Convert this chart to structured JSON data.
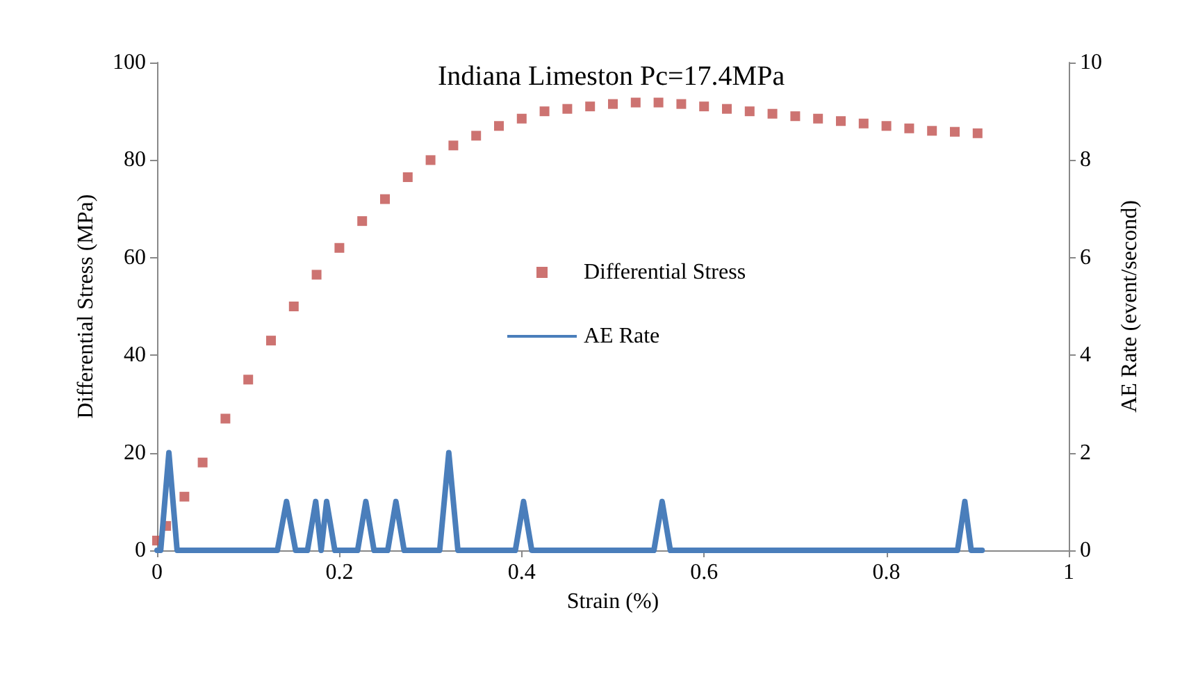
{
  "chart_data": {
    "type": "scatter",
    "title": "Indiana Limeston Pc=17.4MPa",
    "xlabel": "Strain (%)",
    "ylabel": "Differential Stress (MPa)",
    "y2label": "AE Rate (event/second)",
    "xlim": [
      0,
      1
    ],
    "xticks": [
      0,
      0.2,
      0.4,
      0.6,
      0.8,
      1
    ],
    "ylim": [
      0,
      100
    ],
    "yticks": [
      0,
      20,
      40,
      60,
      80,
      100
    ],
    "y2lim": [
      0,
      10
    ],
    "y2ticks": [
      0,
      2,
      4,
      6,
      8,
      10
    ],
    "grid": false,
    "legend": "center",
    "series": [
      {
        "name": "Differential Stress",
        "marker": "square",
        "color": "#c0504d",
        "x": [
          0,
          0.01,
          0.03,
          0.05,
          0.075,
          0.1,
          0.125,
          0.15,
          0.175,
          0.2,
          0.225,
          0.25,
          0.275,
          0.3,
          0.325,
          0.35,
          0.375,
          0.4,
          0.425,
          0.45,
          0.475,
          0.5,
          0.525,
          0.55,
          0.575,
          0.6,
          0.625,
          0.65,
          0.675,
          0.7,
          0.725,
          0.75,
          0.775,
          0.8,
          0.825,
          0.85,
          0.875,
          0.9
        ],
        "values": [
          2,
          5,
          11,
          18,
          27,
          35,
          43,
          50,
          56.5,
          62,
          67.5,
          72,
          76.5,
          80,
          83,
          85,
          87,
          88.5,
          90,
          90.5,
          91,
          91.5,
          91.8,
          91.8,
          91.5,
          91,
          90.5,
          90,
          89.5,
          89,
          88.5,
          88,
          87.5,
          87,
          86.5,
          86,
          85.8,
          85.5
        ]
      },
      {
        "name": "AE Rate",
        "type": "line",
        "axis": "y2",
        "marker": "none",
        "line_style": "solid",
        "color": "#4a7ebb",
        "x": [
          0,
          0.004,
          0.013,
          0.022,
          0.132,
          0.142,
          0.152,
          0.165,
          0.174,
          0.18,
          0.186,
          0.195,
          0.22,
          0.229,
          0.238,
          0.253,
          0.262,
          0.271,
          0.31,
          0.32,
          0.33,
          0.393,
          0.402,
          0.411,
          0.545,
          0.554,
          0.563,
          0.878,
          0.886,
          0.893,
          0.905
        ],
        "values": [
          0,
          0,
          2,
          0,
          0,
          1,
          0,
          0,
          1,
          0,
          1,
          0,
          0,
          1,
          0,
          0,
          1,
          0,
          0,
          2,
          0,
          0,
          1,
          0,
          0,
          1,
          0,
          0,
          1,
          0,
          0
        ]
      }
    ]
  }
}
